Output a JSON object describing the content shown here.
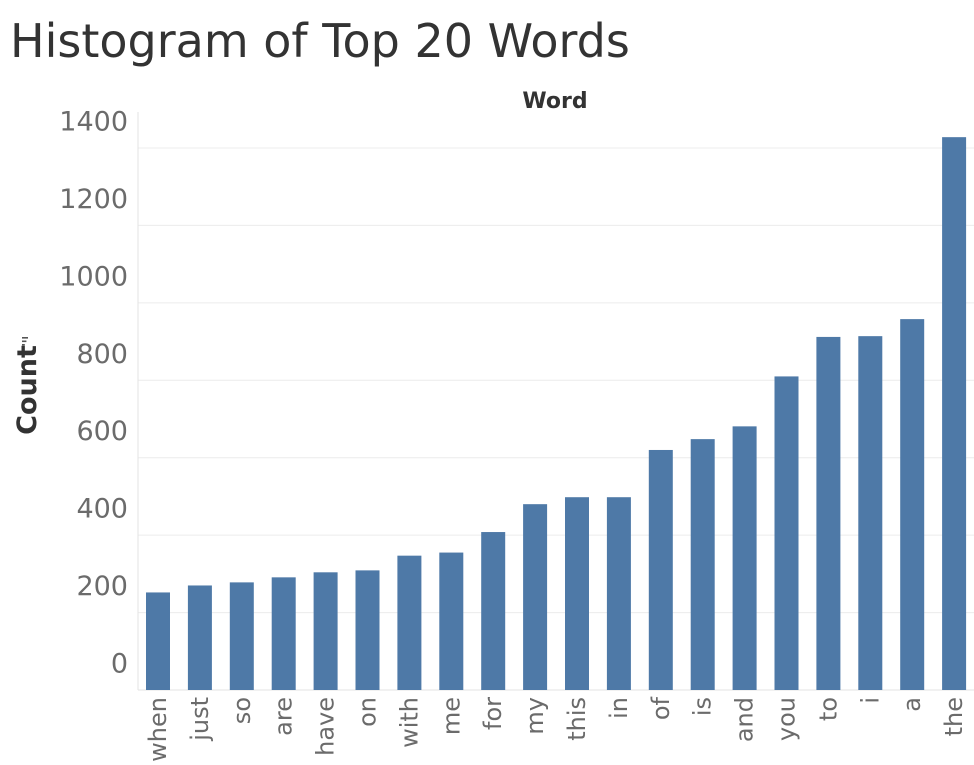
{
  "chart_data": {
    "type": "bar",
    "title": "Histogram of Top 20 Words",
    "xlabel": "Word",
    "ylabel": "Count",
    "categories": [
      "when",
      "just",
      "so",
      "are",
      "have",
      "on",
      "with",
      "me",
      "for",
      "my",
      "this",
      "in",
      "of",
      "is",
      "and",
      "you",
      "to",
      "i",
      "a",
      "the"
    ],
    "values": [
      252,
      270,
      278,
      291,
      304,
      309,
      347,
      355,
      408,
      480,
      498,
      498,
      620,
      648,
      681,
      810,
      912,
      914,
      958,
      1428
    ],
    "ylim": [
      0,
      1400
    ],
    "yticks": [
      0,
      200,
      400,
      600,
      800,
      1000,
      1200,
      1400
    ],
    "y_axis_sort_icon": "sort-descending-icon",
    "bar_color": "#4e79a7",
    "grid": true,
    "legend": "none"
  }
}
